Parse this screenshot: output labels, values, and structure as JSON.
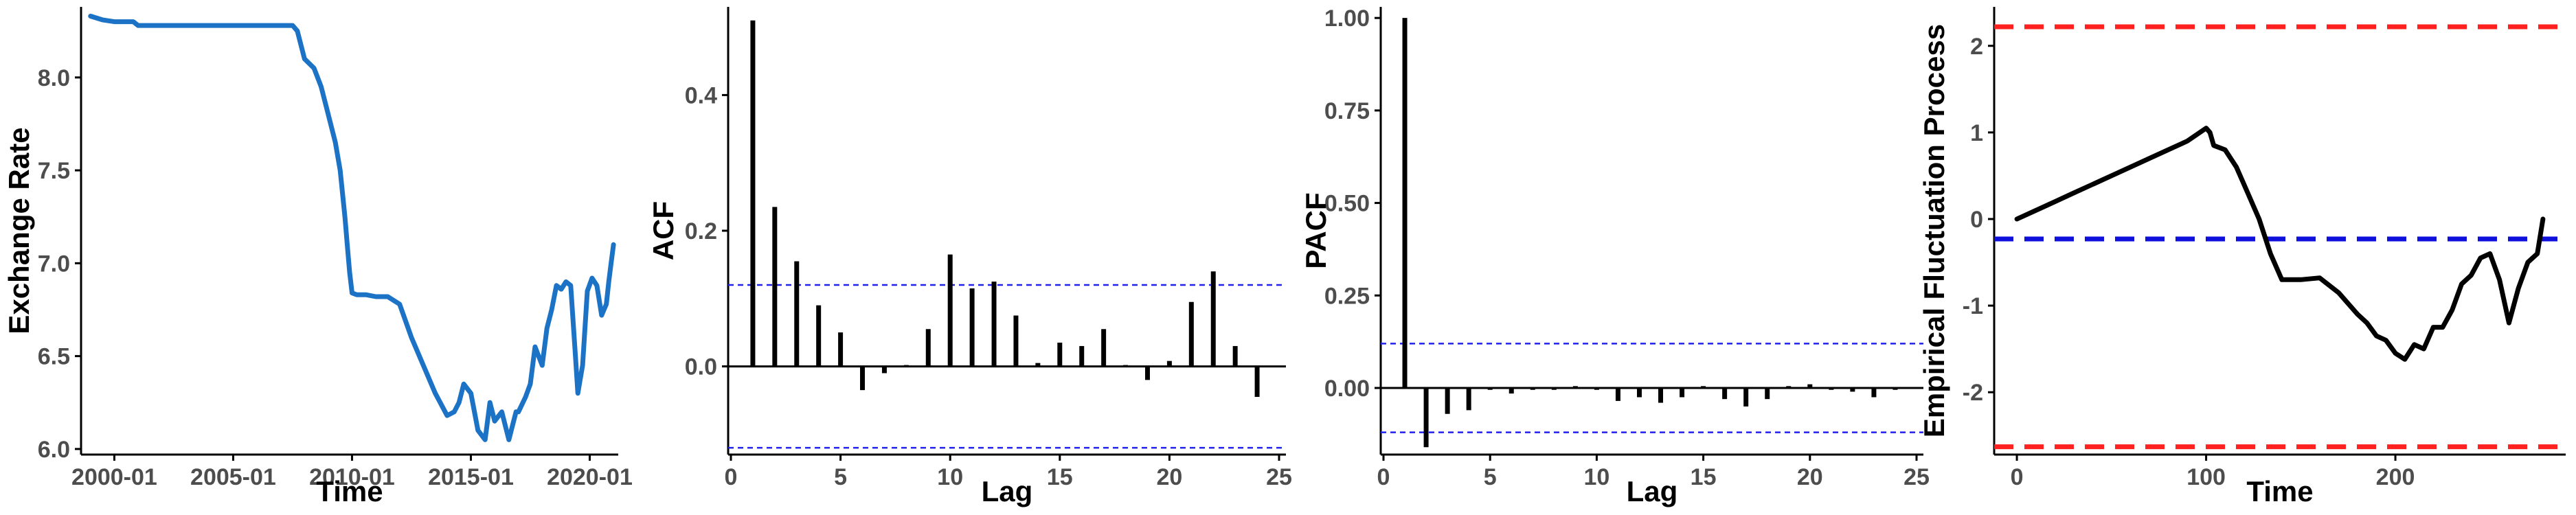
{
  "colors": {
    "exchange_line": "#1c73c6",
    "bar": "#000000",
    "confidence_band": "#2222ee",
    "efp_line": "#000000",
    "boundary_red": "#ff2020",
    "boundary_blue": "#1010dd",
    "axis": "#000000"
  },
  "chart_data": [
    {
      "type": "line",
      "xlabel": "Time",
      "ylabel": "Exchange Rate",
      "xlim": [
        1998.6,
        2021.2
      ],
      "ylim": [
        5.97,
        8.38
      ],
      "xtick_values": [
        2000,
        2005,
        2010,
        2015,
        2020
      ],
      "xtick_labels": [
        "2000-01",
        "2005-01",
        "2010-01",
        "2015-01",
        "2020-01"
      ],
      "yticks": [
        6.0,
        6.5,
        7.0,
        7.5,
        8.0
      ],
      "ytick_labels": [
        "6.0",
        "6.5",
        "7.0",
        "7.5",
        "8.0"
      ],
      "series": [
        {
          "x": [
            1999.0,
            1999.5,
            2000.0,
            2000.8,
            2001.0,
            2003.0,
            2005.0,
            2006.5,
            2007.5,
            2007.7,
            2008.0,
            2008.4,
            2008.7,
            2009.0,
            2009.3,
            2009.5,
            2009.7,
            2009.8,
            2009.9,
            2010.0,
            2010.2,
            2010.4,
            2010.6,
            2011.0,
            2011.5,
            2012.0,
            2012.5,
            2013.0,
            2013.5,
            2014.0,
            2014.3,
            2014.5,
            2014.7,
            2015.0,
            2015.3,
            2015.6,
            2015.8,
            2016.0,
            2016.3,
            2016.6,
            2016.9,
            2017.0,
            2017.3,
            2017.5,
            2017.7,
            2018.0,
            2018.2,
            2018.4,
            2018.6,
            2018.8,
            2019.0,
            2019.2,
            2019.4,
            2019.5,
            2019.7,
            2019.9,
            2020.1,
            2020.3,
            2020.5,
            2020.7,
            2020.8,
            2020.9,
            2021.0
          ],
          "y": [
            8.33,
            8.31,
            8.3,
            8.3,
            8.28,
            8.28,
            8.28,
            8.28,
            8.28,
            8.25,
            8.1,
            8.05,
            7.95,
            7.8,
            7.65,
            7.5,
            7.25,
            7.1,
            6.95,
            6.84,
            6.83,
            6.83,
            6.83,
            6.82,
            6.82,
            6.78,
            6.6,
            6.45,
            6.3,
            6.18,
            6.2,
            6.25,
            6.35,
            6.3,
            6.1,
            6.05,
            6.25,
            6.15,
            6.2,
            6.05,
            6.2,
            6.2,
            6.28,
            6.35,
            6.55,
            6.45,
            6.65,
            6.75,
            6.88,
            6.86,
            6.9,
            6.88,
            6.5,
            6.3,
            6.45,
            6.85,
            6.92,
            6.88,
            6.72,
            6.78,
            6.9,
            7.0,
            7.1
          ]
        }
      ]
    },
    {
      "type": "bar",
      "xlabel": "Lag",
      "ylabel": "ACF",
      "xlim": [
        0,
        25
      ],
      "ylim": [
        -0.13,
        0.53
      ],
      "xticks": [
        0,
        5,
        10,
        15,
        20,
        25
      ],
      "xtick_labels": [
        "0",
        "5",
        "10",
        "15",
        "20",
        "25"
      ],
      "yticks": [
        0.0,
        0.2,
        0.4
      ],
      "ytick_labels": [
        "0.0",
        "0.2",
        "0.4"
      ],
      "confidence_bounds": [
        0.12,
        -0.12
      ],
      "lags": [
        1,
        2,
        3,
        4,
        5,
        6,
        7,
        8,
        9,
        10,
        11,
        12,
        13,
        14,
        15,
        16,
        17,
        18,
        19,
        20,
        21,
        22,
        23,
        24
      ],
      "values": [
        0.51,
        0.235,
        0.155,
        0.09,
        0.05,
        -0.035,
        -0.01,
        0.002,
        0.055,
        0.165,
        0.115,
        0.125,
        0.075,
        0.005,
        0.035,
        0.03,
        0.055,
        0.002,
        -0.02,
        0.008,
        0.095,
        0.14,
        0.03,
        -0.045
      ]
    },
    {
      "type": "bar",
      "xlabel": "Lag",
      "ylabel": "PACF",
      "xlim": [
        0,
        25
      ],
      "ylim": [
        -0.18,
        1.03
      ],
      "xticks": [
        0,
        5,
        10,
        15,
        20,
        25
      ],
      "xtick_labels": [
        "0",
        "5",
        "10",
        "15",
        "20",
        "25"
      ],
      "yticks": [
        0.0,
        0.25,
        0.5,
        0.75,
        1.0
      ],
      "ytick_labels": [
        "0.00",
        "0.25",
        "0.50",
        "0.75",
        "1.00"
      ],
      "confidence_bounds": [
        0.12,
        -0.12
      ],
      "lags": [
        1,
        2,
        3,
        4,
        5,
        6,
        7,
        8,
        9,
        10,
        11,
        12,
        13,
        14,
        15,
        16,
        17,
        18,
        19,
        20,
        21,
        22,
        23,
        24
      ],
      "values": [
        1.0,
        -0.16,
        -0.07,
        -0.06,
        -0.005,
        -0.015,
        -0.005,
        -0.005,
        0.005,
        -0.005,
        -0.035,
        -0.025,
        -0.04,
        -0.025,
        0.005,
        -0.03,
        -0.05,
        -0.03,
        0.005,
        0.01,
        -0.005,
        -0.01,
        -0.025,
        -0.005
      ]
    },
    {
      "type": "line",
      "xlabel": "Time",
      "ylabel": "Empirical Fluctuation Process",
      "xlim": [
        -12,
        290
      ],
      "ylim": [
        -2.72,
        2.45
      ],
      "xticks": [
        0,
        100,
        200
      ],
      "xtick_labels": [
        "0",
        "100",
        "200"
      ],
      "yticks": [
        -2,
        -1,
        0,
        1,
        2
      ],
      "ytick_labels": [
        "-2",
        "-1",
        "0",
        "1",
        "2"
      ],
      "boundaries_red": [
        2.22,
        -2.63
      ],
      "boundary_blue": -0.23,
      "series": [
        {
          "x": [
            0,
            10,
            20,
            30,
            40,
            50,
            60,
            70,
            80,
            90,
            100,
            102,
            104,
            110,
            116,
            122,
            128,
            134,
            140,
            150,
            160,
            170,
            180,
            185,
            190,
            195,
            200,
            205,
            210,
            215,
            220,
            225,
            230,
            235,
            240,
            245,
            250,
            255,
            260,
            265,
            270,
            275,
            278
          ],
          "y": [
            0.0,
            0.1,
            0.2,
            0.3,
            0.4,
            0.5,
            0.6,
            0.7,
            0.8,
            0.9,
            1.05,
            1.0,
            0.85,
            0.8,
            0.6,
            0.3,
            0.0,
            -0.4,
            -0.7,
            -0.7,
            -0.68,
            -0.85,
            -1.1,
            -1.2,
            -1.35,
            -1.4,
            -1.55,
            -1.62,
            -1.45,
            -1.5,
            -1.25,
            -1.25,
            -1.05,
            -0.75,
            -0.65,
            -0.45,
            -0.4,
            -0.7,
            -1.2,
            -0.8,
            -0.5,
            -0.4,
            0.0
          ]
        }
      ]
    }
  ]
}
